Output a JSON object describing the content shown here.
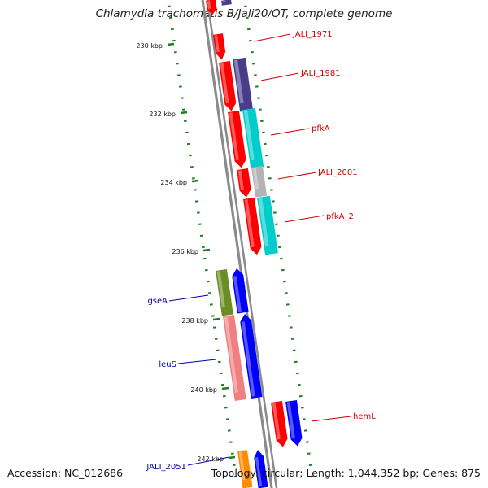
{
  "title": "Chlamydia trachomatis B/Jali20/OT, complete genome",
  "footer": {
    "accession": "Accession: NC_012686",
    "summary": "Topology: circular; Length: 1,044,352 bp; Genes: 875"
  },
  "colors": {
    "backbone": "#8a8a8a",
    "tick": "#1e7d1e",
    "label_forward": "#cc0000",
    "label_reverse": "#0000aa"
  },
  "kbp_ticks": [
    "230 kbp",
    "232 kbp",
    "234 kbp",
    "236 kbp",
    "238 kbp",
    "240 kbp",
    "242 kbp"
  ],
  "features": [
    {
      "label": "JALI_1971",
      "side": "right"
    },
    {
      "label": "JALI_1981",
      "side": "right"
    },
    {
      "label": "pfkA",
      "side": "right"
    },
    {
      "label": "JALI_2001",
      "side": "right"
    },
    {
      "label": "pfkA_2",
      "side": "right"
    },
    {
      "label": "hemL",
      "side": "right"
    },
    {
      "label": "gseA",
      "side": "left"
    },
    {
      "label": "leuS",
      "side": "left"
    },
    {
      "label": "JALI_2051",
      "side": "left"
    }
  ]
}
